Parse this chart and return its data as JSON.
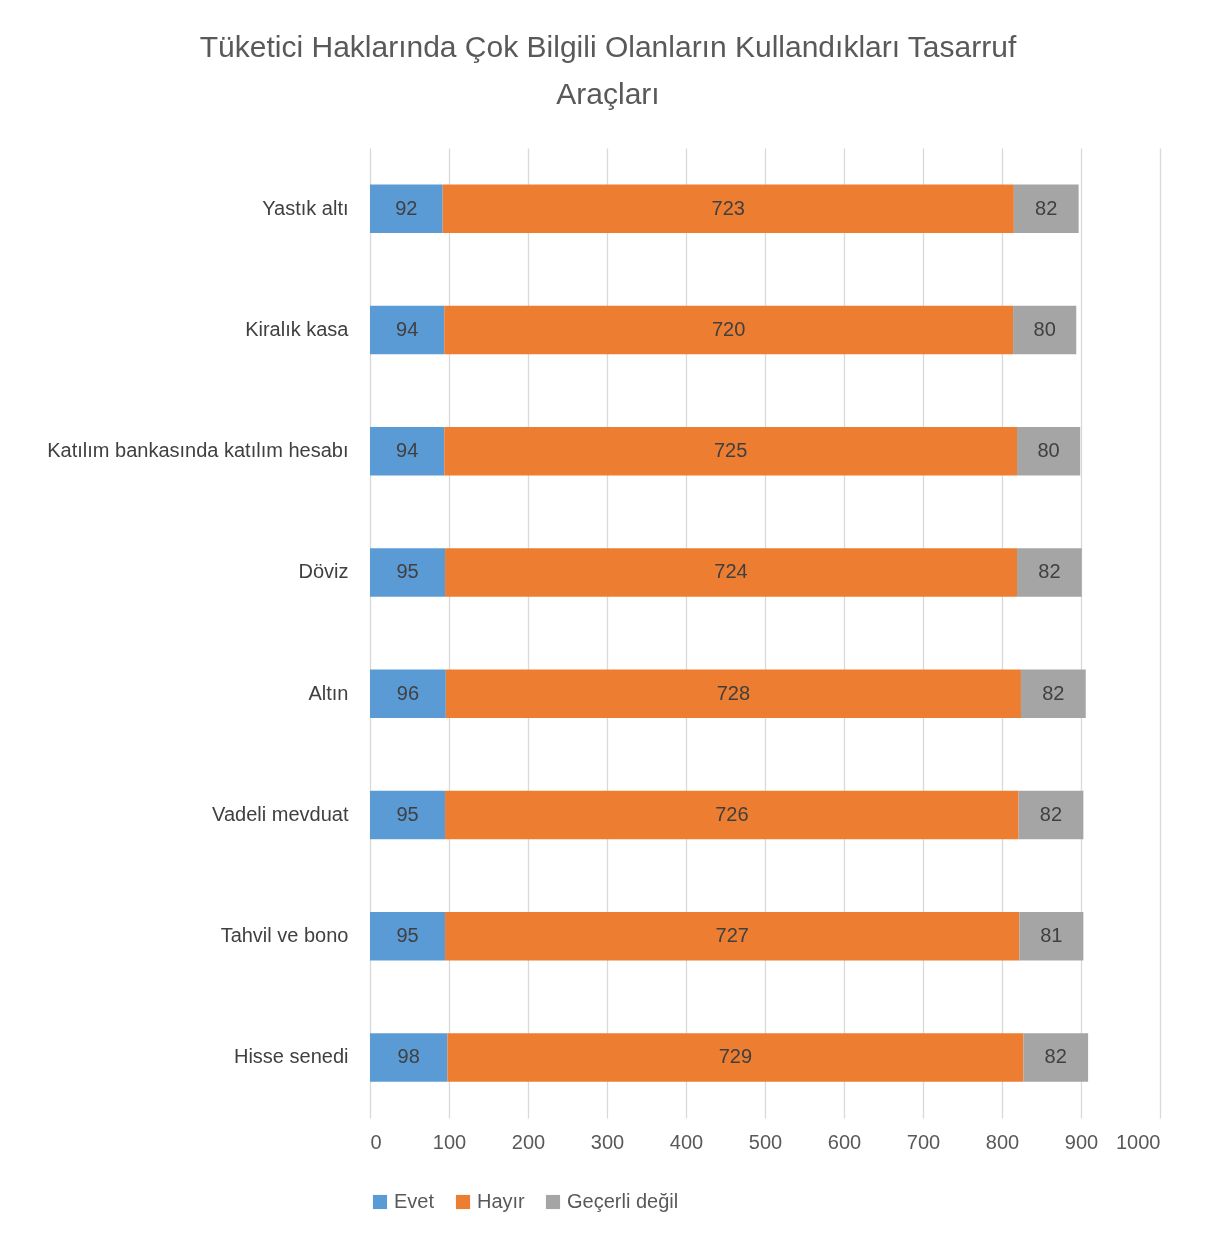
{
  "chart_data": {
    "type": "bar",
    "orientation": "horizontal",
    "stacked": true,
    "title": "Tüketici Haklarında Çok Bilgili Olanların Kullandıkları Tasarruf Araçları",
    "categories": [
      "Yastık altı",
      "Kiralık kasa",
      "Katılım bankasında katılım hesabı",
      "Döviz",
      "Altın",
      "Vadeli mevduat",
      "Tahvil ve bono",
      "Hisse senedi"
    ],
    "series": [
      {
        "name": "Evet",
        "color": "#5b9bd5",
        "values": [
          92,
          94,
          94,
          95,
          96,
          95,
          95,
          98
        ]
      },
      {
        "name": "Hayır",
        "color": "#ed7d31",
        "values": [
          723,
          720,
          725,
          724,
          728,
          726,
          727,
          729
        ]
      },
      {
        "name": "Geçerli değil",
        "color": "#a5a5a5",
        "values": [
          82,
          80,
          80,
          82,
          82,
          82,
          81,
          82
        ]
      }
    ],
    "xlim": [
      0,
      1000
    ],
    "xticks": [
      0,
      100,
      200,
      300,
      400,
      500,
      600,
      700,
      800,
      900,
      1000
    ],
    "grid": "x",
    "legend": "bottom",
    "data_labels": true
  }
}
